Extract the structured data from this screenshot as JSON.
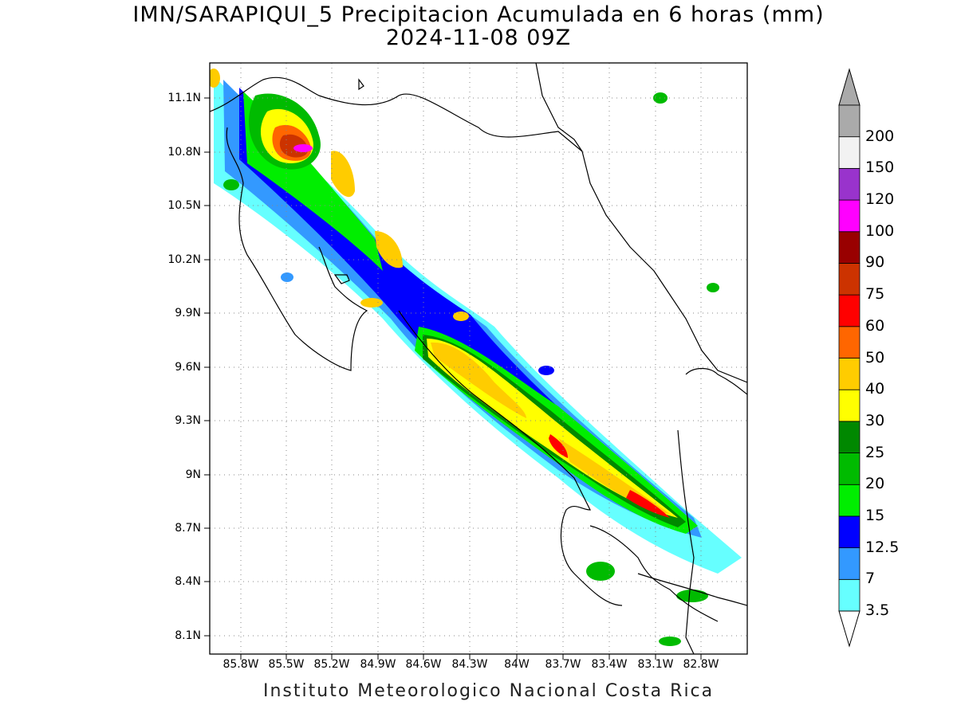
{
  "header": {
    "title_line1": "IMN/SARAPIQUI_5 Precipitacion Acumulada en 6 horas (mm)",
    "title_line2": "2024-11-08 09Z"
  },
  "footer": {
    "credit": "Instituto Meteorologico Nacional Costa Rica"
  },
  "axes": {
    "lat_labels": [
      "11.1N",
      "10.8N",
      "10.5N",
      "10.2N",
      "9.9N",
      "9.6N",
      "9.3N",
      "9N",
      "8.7N",
      "8.4N",
      "8.1N"
    ],
    "lon_labels": [
      "85.8W",
      "85.5W",
      "85.2W",
      "84.9W",
      "84.6W",
      "84.3W",
      "84W",
      "83.7W",
      "83.4W",
      "83.1W",
      "82.8W"
    ]
  },
  "colorbar": {
    "levels": [
      "3.5",
      "7",
      "12.5",
      "15",
      "20",
      "25",
      "30",
      "40",
      "50",
      "60",
      "75",
      "90",
      "100",
      "120",
      "150",
      "200"
    ],
    "colors": [
      "#66ffff",
      "#3399ff",
      "#0000ff",
      "#00ee00",
      "#00bb00",
      "#008800",
      "#ffff00",
      "#ffcc00",
      "#ff6600",
      "#ff0000",
      "#cc3300",
      "#990000",
      "#ff00ff",
      "#9933cc",
      "#f2f2f2",
      "#aaaaaa"
    ]
  }
}
